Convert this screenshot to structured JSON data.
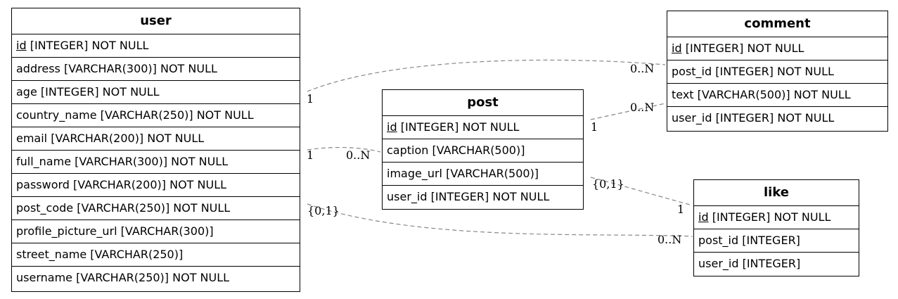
{
  "entities": {
    "user": {
      "name": "user",
      "fields": [
        {
          "pk": "id",
          "rest": " [INTEGER] NOT NULL"
        },
        {
          "text": "address [VARCHAR(300)] NOT NULL"
        },
        {
          "text": "age [INTEGER] NOT NULL"
        },
        {
          "text": "country_name [VARCHAR(250)] NOT NULL"
        },
        {
          "text": "email [VARCHAR(200)] NOT NULL"
        },
        {
          "text": "full_name [VARCHAR(300)] NOT NULL"
        },
        {
          "text": "password [VARCHAR(200)] NOT NULL"
        },
        {
          "text": "post_code [VARCHAR(250)] NOT NULL"
        },
        {
          "text": "profile_picture_url [VARCHAR(300)]"
        },
        {
          "text": "street_name [VARCHAR(250)]"
        },
        {
          "text": "username [VARCHAR(250)] NOT NULL"
        }
      ]
    },
    "post": {
      "name": "post",
      "fields": [
        {
          "pk": "id",
          "rest": " [INTEGER] NOT NULL"
        },
        {
          "text": "caption [VARCHAR(500)]"
        },
        {
          "text": "image_url [VARCHAR(500)]"
        },
        {
          "text": "user_id [INTEGER] NOT NULL"
        }
      ]
    },
    "comment": {
      "name": "comment",
      "fields": [
        {
          "pk": "id",
          "rest": " [INTEGER] NOT NULL"
        },
        {
          "text": "post_id [INTEGER] NOT NULL"
        },
        {
          "text": "text [VARCHAR(500)] NOT NULL"
        },
        {
          "text": "user_id [INTEGER] NOT NULL"
        }
      ]
    },
    "like": {
      "name": "like",
      "fields": [
        {
          "pk": "id",
          "rest": " [INTEGER] NOT NULL"
        },
        {
          "text": "post_id [INTEGER]"
        },
        {
          "text": "user_id [INTEGER]"
        }
      ]
    }
  },
  "relationships": [
    {
      "from": "user",
      "to": "comment",
      "from_card": "1",
      "to_card": "0..N"
    },
    {
      "from": "user",
      "to": "post",
      "from_card": "1",
      "to_card": "0..N"
    },
    {
      "from": "user",
      "to": "like",
      "from_card": "{0,1}",
      "to_card": "0..N"
    },
    {
      "from": "post",
      "to": "comment",
      "from_card": "1",
      "to_card": "0..N"
    },
    {
      "from": "post",
      "to": "like",
      "from_card": "{0,1}",
      "to_card": "1"
    }
  ],
  "colors": {
    "edge": "#888888",
    "border": "#000000",
    "text": "#000000"
  }
}
